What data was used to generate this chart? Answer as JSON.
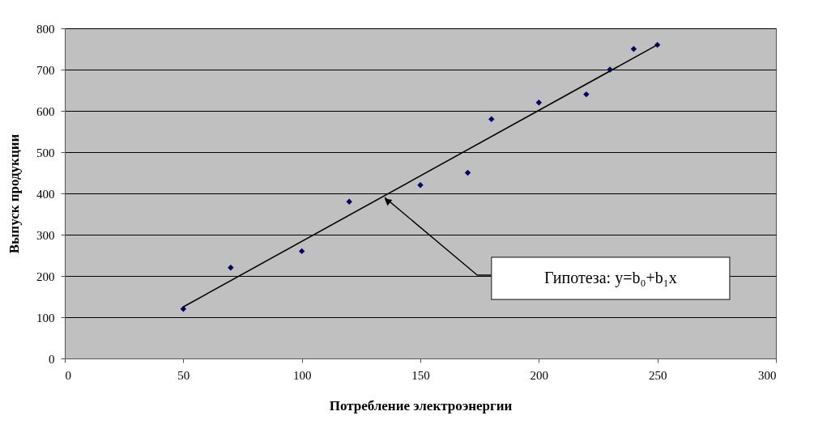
{
  "chart_data": {
    "type": "scatter",
    "xlabel": "Потребление электроэнергии",
    "ylabel": "Выпуск продукции",
    "x": [
      50,
      70,
      100,
      120,
      150,
      170,
      180,
      200,
      220,
      230,
      240,
      250
    ],
    "xlim": [
      0,
      300
    ],
    "xticks": [
      0,
      50,
      100,
      150,
      200,
      250,
      300
    ],
    "ylim": [
      0,
      800
    ],
    "yticks": [
      0,
      100,
      200,
      300,
      400,
      500,
      600,
      700,
      800
    ],
    "grid": "y",
    "marker": "diamond",
    "series": [
      {
        "color": "#000066",
        "values": [
          120,
          220,
          260,
          380,
          420,
          450,
          580,
          620,
          640,
          700,
          750,
          760
        ]
      },
      {
        "type": "line",
        "x": [
          50,
          250
        ],
        "values": [
          125,
          760
        ],
        "color": "#000000",
        "marker": "none"
      }
    ],
    "annotations": [
      "Гипотеза: y=b₀+b₁x"
    ]
  }
}
